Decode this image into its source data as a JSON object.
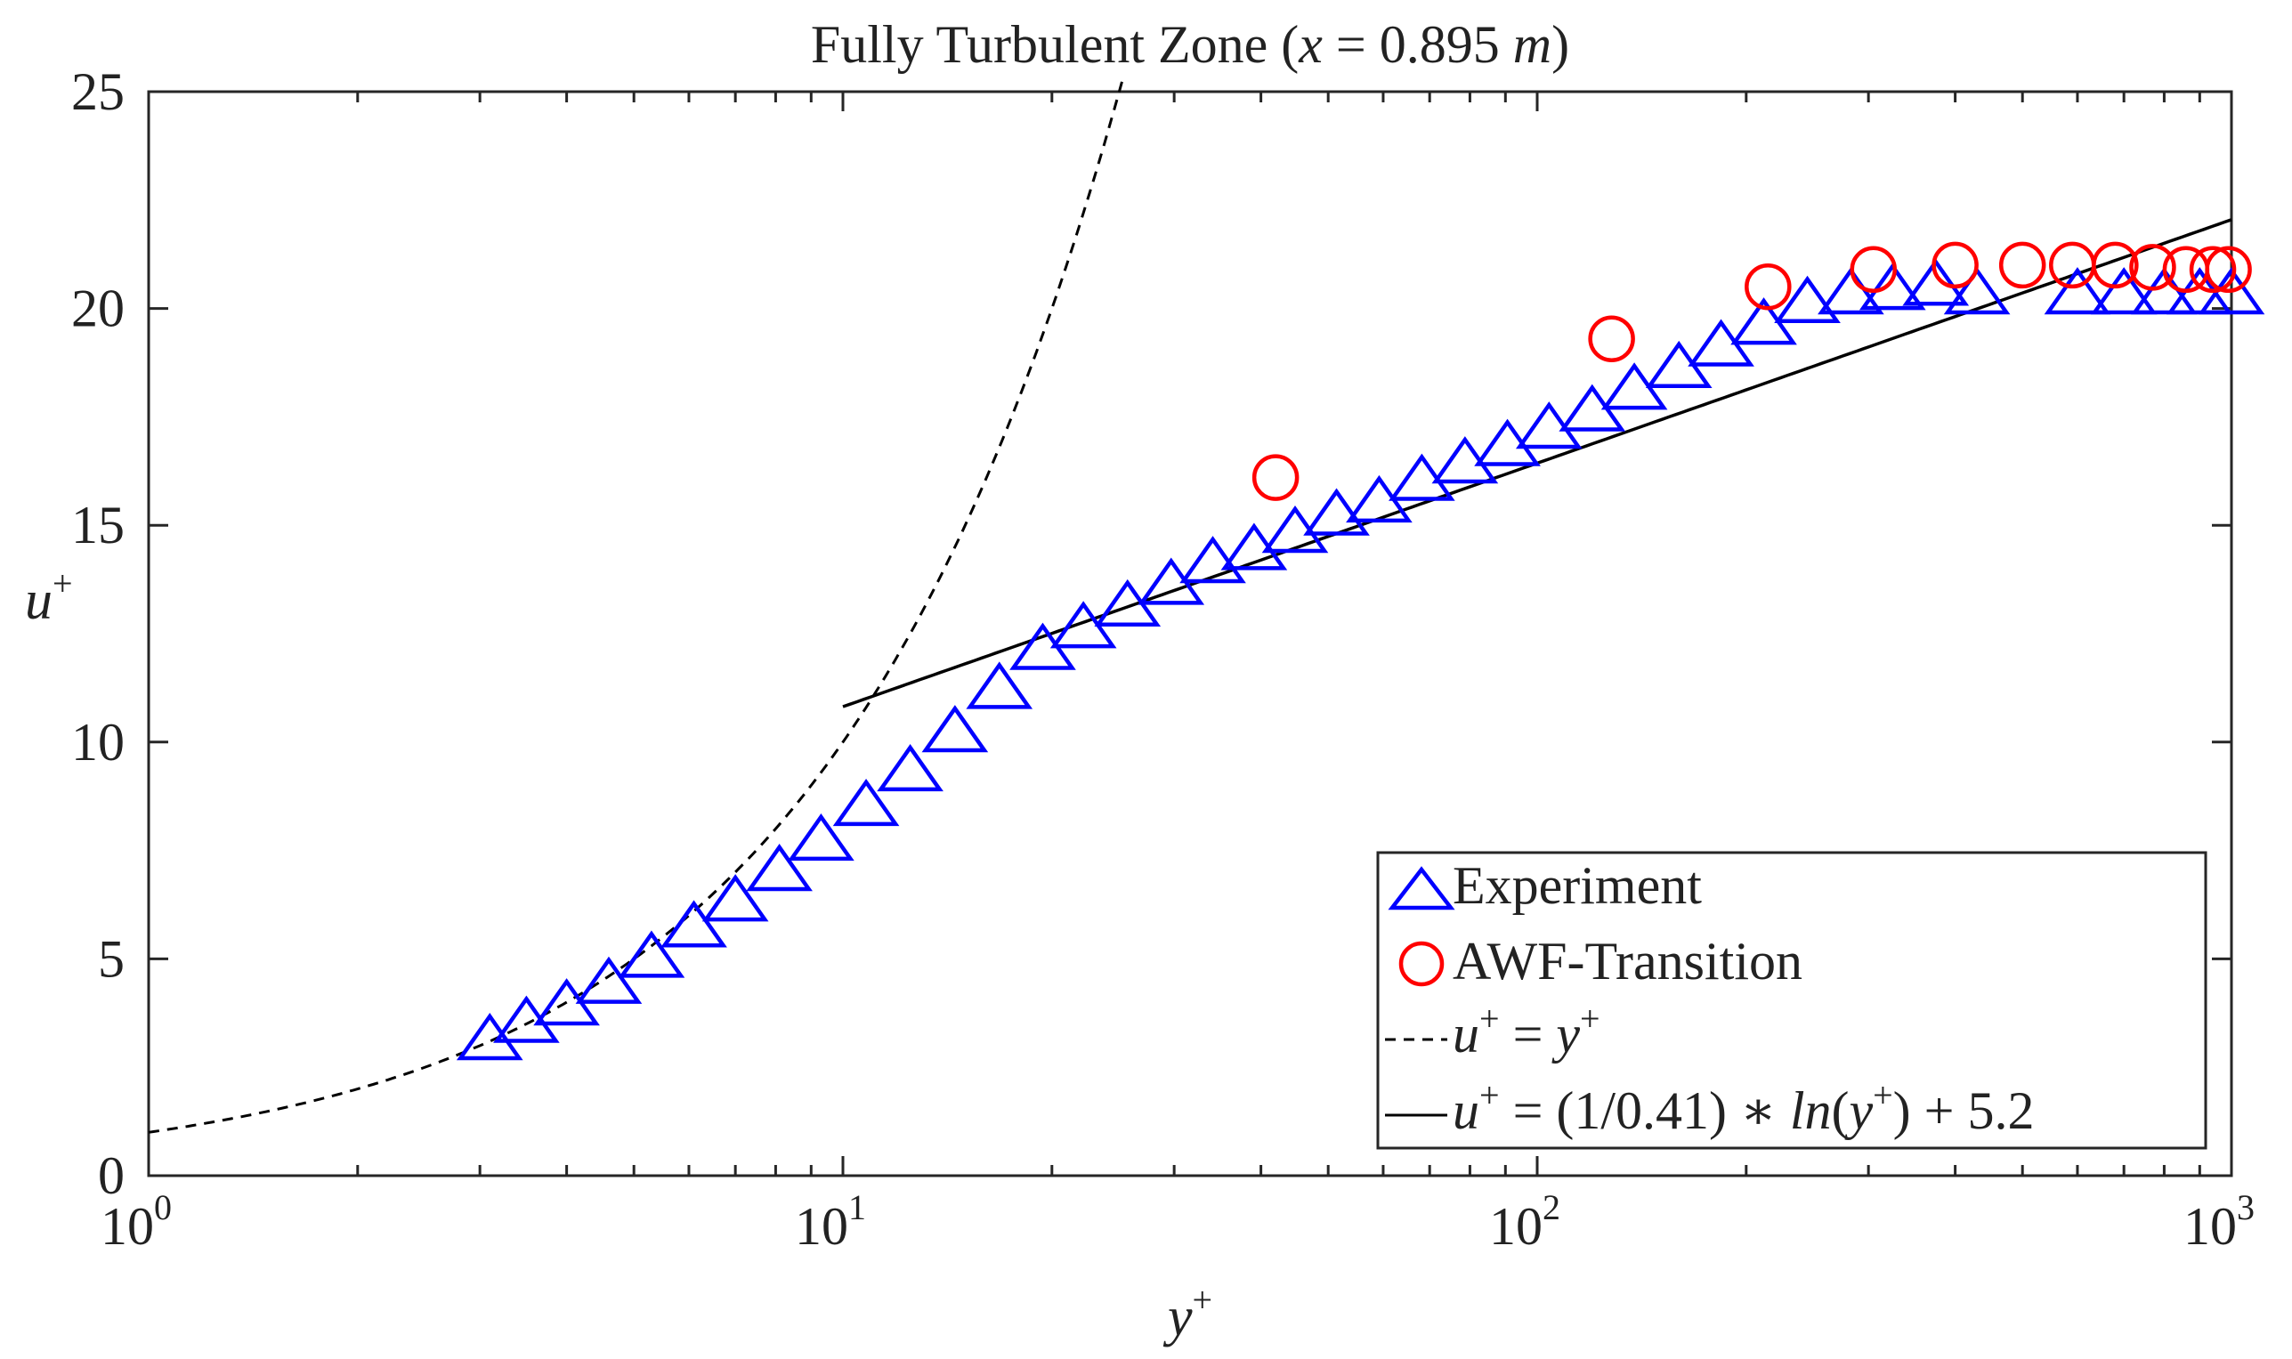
{
  "chart_data": {
    "type": "scatter",
    "title": "Fully Turbulent Zone (x = 0.895 m)",
    "title_parts": {
      "prefix": "Fully Turbulent Zone (",
      "var": "x",
      "eq": " = 0.895 ",
      "unit": "m",
      "suffix": ")"
    },
    "xlabel": "y+",
    "ylabel": "u+",
    "xscale": "log",
    "xlim": [
      1,
      1000
    ],
    "ylim": [
      0,
      25
    ],
    "xticks": [
      {
        "value": 1,
        "base": "10",
        "exp": "0"
      },
      {
        "value": 10,
        "base": "10",
        "exp": "1"
      },
      {
        "value": 100,
        "base": "10",
        "exp": "2"
      },
      {
        "value": 1000,
        "base": "10",
        "exp": "3"
      }
    ],
    "yticks": [
      0,
      5,
      10,
      15,
      20,
      25
    ],
    "grid": false,
    "legend_position": "bottom-right",
    "series": [
      {
        "name": "Experiment",
        "kind": "markers",
        "marker": "triangle",
        "color": "#0000ff",
        "x": [
          3.1,
          3.5,
          4.0,
          4.6,
          5.3,
          6.1,
          7.0,
          8.1,
          9.3,
          10.8,
          12.5,
          14.5,
          16.8,
          19.4,
          22.2,
          25.7,
          29.7,
          34.1,
          39.1,
          44.8,
          51.4,
          59.2,
          68.2,
          78.7,
          90.6,
          104,
          120,
          138,
          160,
          184,
          212,
          245,
          283,
          325,
          375,
          430,
          600,
          700,
          800,
          900,
          1000
        ],
        "y": [
          3.1,
          3.5,
          3.9,
          4.4,
          5.0,
          5.7,
          6.3,
          7.0,
          7.7,
          8.5,
          9.3,
          10.2,
          11.2,
          12.1,
          12.6,
          13.1,
          13.6,
          14.1,
          14.4,
          14.8,
          15.2,
          15.5,
          16.0,
          16.4,
          16.8,
          17.2,
          17.6,
          18.1,
          18.6,
          19.1,
          19.6,
          20.1,
          20.3,
          20.4,
          20.5,
          20.3,
          20.3,
          20.3,
          20.3,
          20.3,
          20.3
        ]
      },
      {
        "name": "AWF-Transition",
        "kind": "markers",
        "marker": "circle",
        "color": "#ff0000",
        "x": [
          42,
          128,
          215,
          305,
          400,
          500,
          590,
          680,
          770,
          860,
          940,
          990
        ],
        "y": [
          16.1,
          19.3,
          20.5,
          20.9,
          21.0,
          21.0,
          21.0,
          21.0,
          20.95,
          20.9,
          20.9,
          20.9
        ]
      },
      {
        "name": "u+ = y+",
        "kind": "line",
        "style": "dashed",
        "color": "#000000",
        "formula": "u+ = y+",
        "x_range": [
          1,
          25.4
        ]
      },
      {
        "name": "u+ = (1/0.41) * ln(y+) + 5.2",
        "kind": "line",
        "style": "solid",
        "color": "#000000",
        "formula": "u+ = (1/0.41)*ln(y+) + 5.2",
        "x_range": [
          10,
          1000
        ]
      }
    ],
    "legend": [
      {
        "label": "Experiment",
        "series": 0
      },
      {
        "label": "AWF-Transition",
        "series": 1
      },
      {
        "label_parts": [
          "u",
          "+",
          " = ",
          "y",
          "+"
        ],
        "series": 2
      },
      {
        "label_parts": [
          "u",
          "+",
          " = (1/0.41) ∗ ",
          "ln",
          "(",
          "y",
          "+",
          ") + 5.2"
        ],
        "series": 3
      }
    ]
  }
}
